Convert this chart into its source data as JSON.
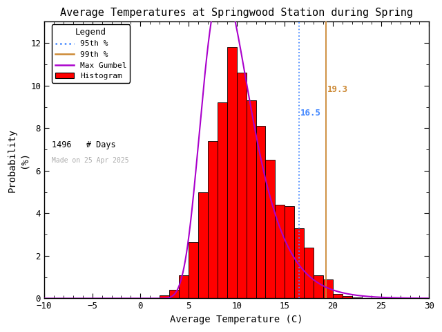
{
  "title": "Average Temperatures at Springwood Station during Spring",
  "xlabel": "Average Temperature (C)",
  "ylabel": "Probability\n(%)",
  "xlim": [
    -10,
    30
  ],
  "ylim": [
    0,
    13
  ],
  "yticks": [
    0,
    2,
    4,
    6,
    8,
    10,
    12
  ],
  "xticks": [
    -10,
    -5,
    0,
    5,
    10,
    15,
    20,
    25,
    30
  ],
  "bin_edges": [
    2,
    3,
    4,
    5,
    6,
    7,
    8,
    9,
    10,
    11,
    12,
    13,
    14,
    15,
    16,
    17,
    18,
    19,
    20,
    21,
    22,
    23,
    24,
    25
  ],
  "bar_heights": [
    0.13,
    0.4,
    1.1,
    2.65,
    5.0,
    7.4,
    9.2,
    11.8,
    10.6,
    9.3,
    8.1,
    6.5,
    4.4,
    4.35,
    3.3,
    2.4,
    1.1,
    0.9,
    0.2,
    0.1,
    0.05,
    0.03,
    0.02
  ],
  "bar_color": "#ff0000",
  "bar_edgecolor": "#000000",
  "gumbel_mu": 8.5,
  "gumbel_beta": 2.5,
  "gumbel_scale": 100.0,
  "percentile_95": 16.5,
  "percentile_99": 19.3,
  "n_days": 1496,
  "watermark": "Made on 25 Apr 2025",
  "watermark_color": "#aaaaaa",
  "line_95_color": "#4488ff",
  "line_99_color": "#cc8833",
  "gumbel_color": "#aa00cc",
  "legend_title": "Legend",
  "background_color": "#ffffff",
  "font_color": "#000000",
  "text_95_color": "#4488ff",
  "text_99_color": "#cc8833"
}
